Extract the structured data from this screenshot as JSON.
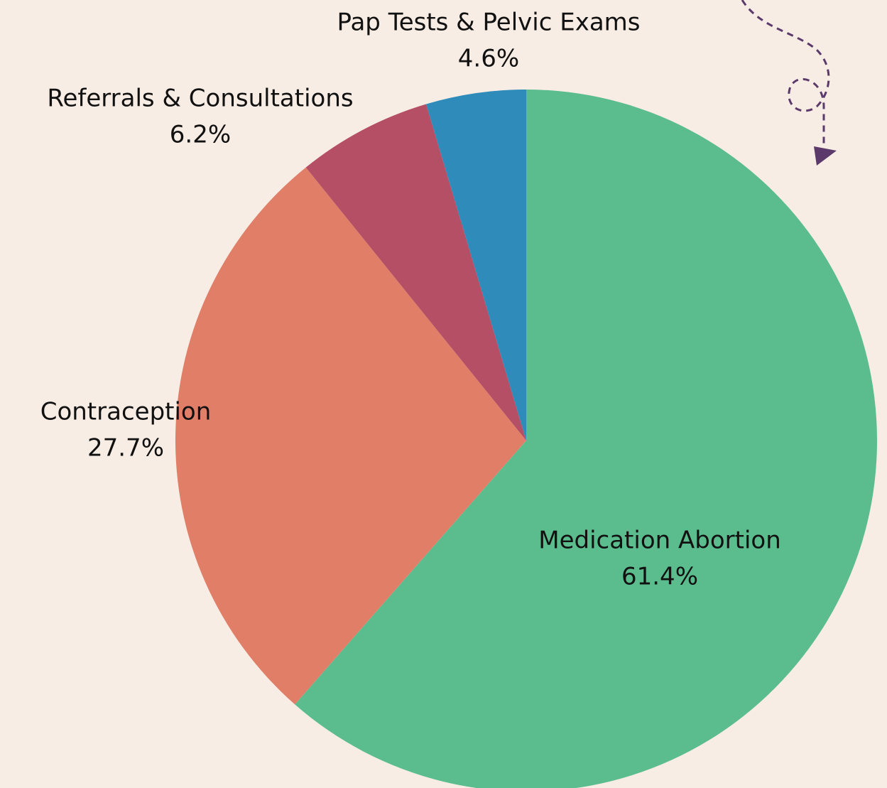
{
  "chart_data": {
    "type": "pie",
    "categories": [
      "Medication Abortion",
      "Contraception",
      "Referrals & Consultations",
      "Pap Tests & Pelvic Exams"
    ],
    "values": [
      61.4,
      27.7,
      6.2,
      4.6
    ],
    "value_labels": [
      "61.4%",
      "27.7%",
      "6.2%",
      "4.6%"
    ],
    "colors": [
      "#5bbd8e",
      "#e07e68",
      "#b54f66",
      "#2e8bba"
    ]
  }
}
